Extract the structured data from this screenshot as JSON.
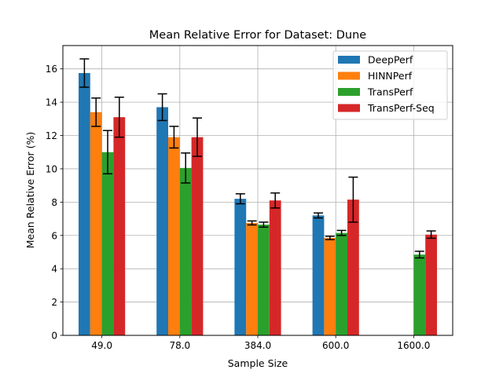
{
  "chart_data": {
    "type": "bar",
    "title": "Mean Relative Error for Dataset: Dune",
    "xlabel": "Sample Size",
    "ylabel": "Mean Relative Error (%)",
    "categories": [
      "49.0",
      "78.0",
      "384.0",
      "600.0",
      "1600.0"
    ],
    "ylim": [
      0,
      17.4
    ],
    "yticks": [
      0,
      2,
      4,
      6,
      8,
      10,
      12,
      14,
      16
    ],
    "grid": true,
    "legend_position": "top-right",
    "series": [
      {
        "name": "DeepPerf",
        "color": "#1f77b4",
        "values": [
          15.75,
          13.7,
          8.2,
          7.2,
          null
        ],
        "errors": [
          0.85,
          0.8,
          0.3,
          0.15,
          null
        ]
      },
      {
        "name": "HINNPerf",
        "color": "#ff7f0e",
        "values": [
          13.4,
          11.9,
          6.75,
          5.85,
          null
        ],
        "errors": [
          0.85,
          0.65,
          0.12,
          0.1,
          null
        ]
      },
      {
        "name": "TransPerf",
        "color": "#2ca02c",
        "values": [
          11.0,
          10.05,
          6.65,
          6.15,
          4.85
        ],
        "errors": [
          1.3,
          0.9,
          0.15,
          0.15,
          0.2
        ]
      },
      {
        "name": "TransPerf-Seq",
        "color": "#d62728",
        "values": [
          13.1,
          11.9,
          8.1,
          8.15,
          6.05
        ],
        "errors": [
          1.2,
          1.15,
          0.45,
          1.35,
          0.22
        ]
      }
    ]
  }
}
